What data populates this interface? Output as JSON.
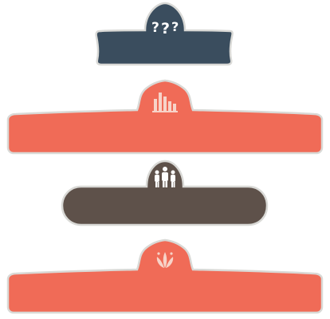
{
  "colors": {
    "navy": "#3a4d5e",
    "coral": "#f06b57",
    "brown": "#5e514a",
    "stroke": "#d9d9d6",
    "icon": "#ffffff",
    "icon_on_coral": "#f7d3c8"
  },
  "banners": [
    {
      "style": "navy-tab",
      "icon": "question-marks-icon"
    },
    {
      "style": "coral-wide",
      "icon": "bar-chart-icon"
    },
    {
      "style": "brown-pill",
      "icon": "people-group-icon"
    },
    {
      "style": "coral-wide",
      "icon": "fountain-sprout-icon"
    }
  ]
}
